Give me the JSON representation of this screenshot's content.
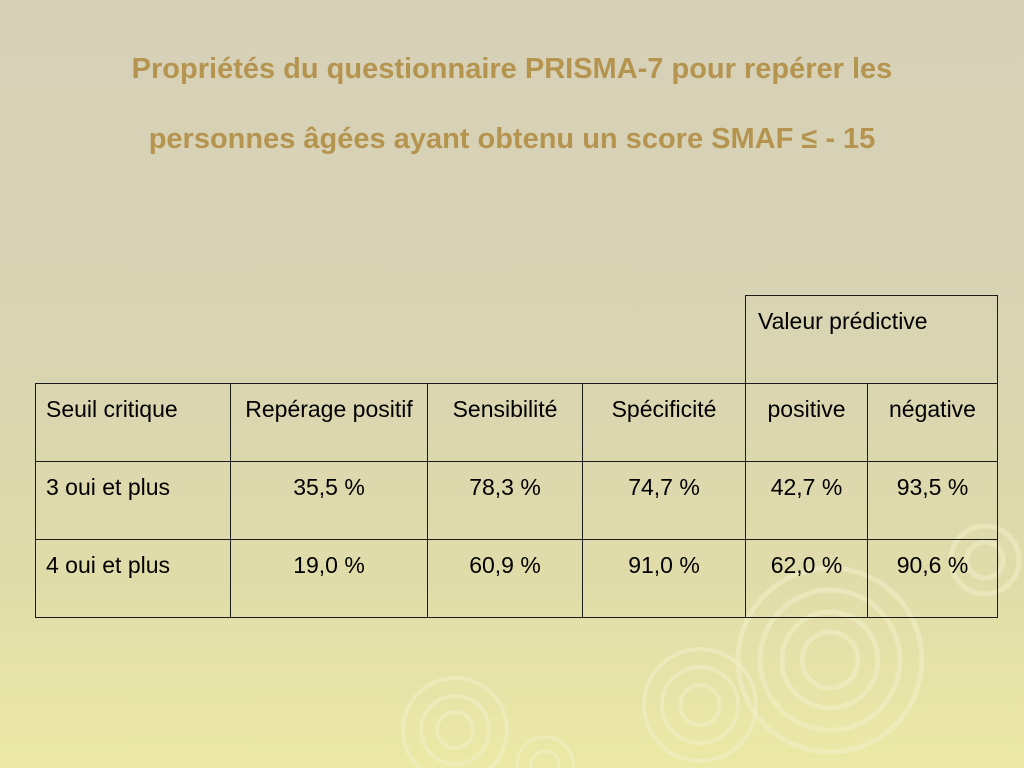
{
  "title": {
    "line1": "Propriétés du questionnaire PRISMA-7 pour repérer les",
    "line2": "personnes âgées ayant obtenu un score SMAF  ≤ - 15"
  },
  "table": {
    "group_header": "Valeur prédictive",
    "columns": [
      "Seuil critique",
      "Repérage positif",
      "Sensibilité",
      "Spécificité",
      "positive",
      "négative"
    ],
    "rows": [
      [
        "3 oui et plus",
        "35,5 %",
        "78,3 %",
        "74,7 %",
        "42,7 %",
        "93,5 %"
      ],
      [
        "4 oui et plus",
        "19,0 %",
        "60,9 %",
        "91,0 %",
        "62,0 %",
        "90,6 %"
      ]
    ]
  },
  "colors": {
    "title": "#b5944f",
    "background_top": "#d6d0b8",
    "background_bottom": "#ece9a6"
  }
}
